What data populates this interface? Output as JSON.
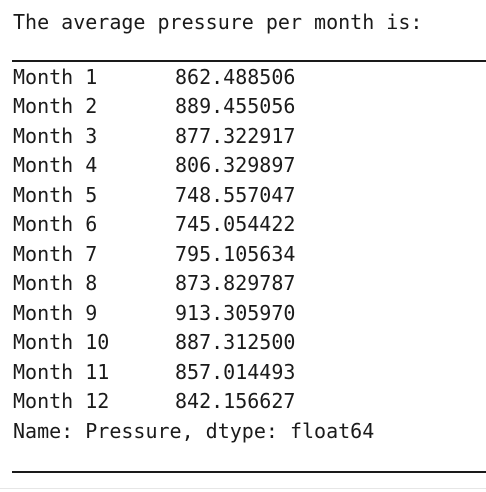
{
  "output": {
    "heading": "The average pressure per month is:",
    "rows": [
      {
        "label": "Month 1",
        "value": "862.488506"
      },
      {
        "label": "Month 2",
        "value": "889.455056"
      },
      {
        "label": "Month 3",
        "value": "877.322917"
      },
      {
        "label": "Month 4",
        "value": "806.329897"
      },
      {
        "label": "Month 5",
        "value": "748.557047"
      },
      {
        "label": "Month 6",
        "value": "745.054422"
      },
      {
        "label": "Month 7",
        "value": "795.105634"
      },
      {
        "label": "Month 8",
        "value": "873.829787"
      },
      {
        "label": "Month 9",
        "value": "913.305970"
      },
      {
        "label": "Month 10",
        "value": "887.312500"
      },
      {
        "label": "Month 11",
        "value": "857.014493"
      },
      {
        "label": "Month 12",
        "value": "842.156627"
      }
    ],
    "series_footer": "Name: Pressure, dtype: float64"
  }
}
